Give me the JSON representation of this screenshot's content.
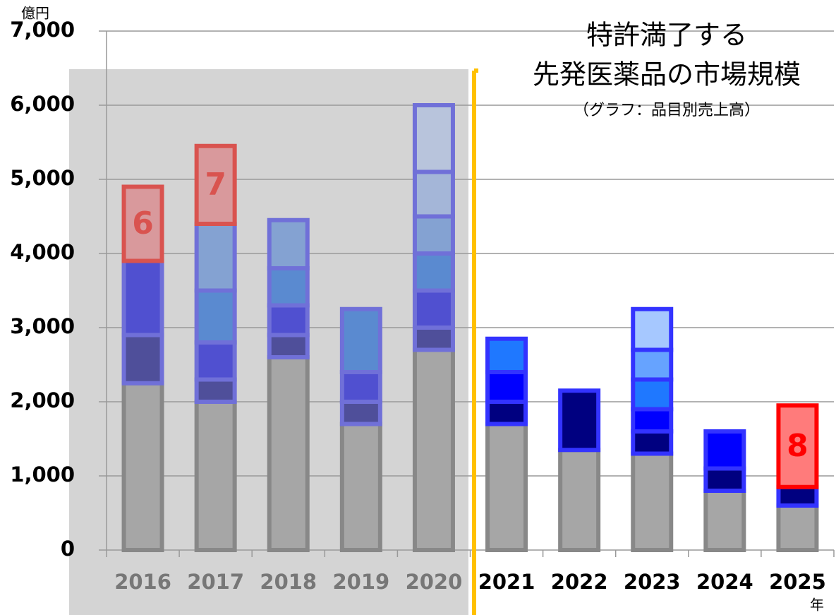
{
  "chart_data": {
    "type": "stacked_bar",
    "title_lines": [
      "特許満了する",
      "先発医薬品の市場規模"
    ],
    "subtitle": "（グラフ：品目別売上高）",
    "y_unit": "億円",
    "x_unit": "年",
    "categories": [
      "2016",
      "2017",
      "2018",
      "2019",
      "2020",
      "2021",
      "2022",
      "2023",
      "2024",
      "2025"
    ],
    "category_colors": [
      "#777777",
      "#777777",
      "#777777",
      "#777777",
      "#777777",
      "#000000",
      "#000000",
      "#000000",
      "#000000",
      "#000000"
    ],
    "ylim": [
      0,
      7000
    ],
    "yticks": [
      {
        "value": 0,
        "label": "0"
      },
      {
        "value": 1000,
        "label": "1,000"
      },
      {
        "value": 2000,
        "label": "2,000"
      },
      {
        "value": 3000,
        "label": "3,000"
      },
      {
        "value": 4000,
        "label": "4,000"
      },
      {
        "value": 5000,
        "label": "5,000"
      },
      {
        "value": 6000,
        "label": "6,000"
      },
      {
        "value": 7000,
        "label": "7,000"
      }
    ],
    "grid": true,
    "stacks": [
      [
        {
          "value": 2250,
          "color": "#a6a6a6",
          "border": "#888888"
        },
        {
          "value": 650,
          "color": "#4f4f9a",
          "border": "#7070d8"
        },
        {
          "value": 1000,
          "color": "#5050d0",
          "border": "#7070d8"
        },
        {
          "value": 1000,
          "color": "#d9999c",
          "border": "#d9534f",
          "label": 6,
          "label_color": "#d9534f"
        }
      ],
      [
        {
          "value": 2000,
          "color": "#a6a6a6",
          "border": "#888888"
        },
        {
          "value": 300,
          "color": "#4f4f9a",
          "border": "#7070d8"
        },
        {
          "value": 500,
          "color": "#5050d0",
          "border": "#7070d8"
        },
        {
          "value": 700,
          "color": "#5a8ad0",
          "border": "#7070d8"
        },
        {
          "value": 900,
          "color": "#84a2d2",
          "border": "#7070d8"
        },
        {
          "value": 1050,
          "color": "#d9999c",
          "border": "#d9534f",
          "label": 7,
          "label_color": "#d9534f"
        }
      ],
      [
        {
          "value": 2600,
          "color": "#a6a6a6",
          "border": "#888888"
        },
        {
          "value": 300,
          "color": "#4f4f9a",
          "border": "#7070d8"
        },
        {
          "value": 400,
          "color": "#5050d0",
          "border": "#7070d8"
        },
        {
          "value": 500,
          "color": "#5a8ad0",
          "border": "#7070d8"
        },
        {
          "value": 650,
          "color": "#84a2d2",
          "border": "#7070d8"
        }
      ],
      [
        {
          "value": 1700,
          "color": "#a6a6a6",
          "border": "#888888"
        },
        {
          "value": 300,
          "color": "#4f4f9a",
          "border": "#7070d8"
        },
        {
          "value": 400,
          "color": "#5050d0",
          "border": "#7070d8"
        },
        {
          "value": 850,
          "color": "#5a8ad0",
          "border": "#7070d8"
        }
      ],
      [
        {
          "value": 2700,
          "color": "#a6a6a6",
          "border": "#888888"
        },
        {
          "value": 300,
          "color": "#4f4f9a",
          "border": "#7070d8"
        },
        {
          "value": 500,
          "color": "#5050d0",
          "border": "#7070d8"
        },
        {
          "value": 500,
          "color": "#5a8ad0",
          "border": "#7070d8"
        },
        {
          "value": 500,
          "color": "#84a2d2",
          "border": "#7070d8"
        },
        {
          "value": 600,
          "color": "#a4b6d8",
          "border": "#7070d8"
        },
        {
          "value": 900,
          "color": "#b8c4dc",
          "border": "#7070d8"
        }
      ],
      [
        {
          "value": 1700,
          "color": "#a6a6a6",
          "border": "#888888"
        },
        {
          "value": 300,
          "color": "#000080",
          "border": "#3333ff"
        },
        {
          "value": 400,
          "color": "#0000ff",
          "border": "#3333ff"
        },
        {
          "value": 450,
          "color": "#1f78ff",
          "border": "#3333ff"
        }
      ],
      [
        {
          "value": 1350,
          "color": "#a6a6a6",
          "border": "#888888"
        },
        {
          "value": 800,
          "color": "#000080",
          "border": "#3333ff"
        }
      ],
      [
        {
          "value": 1300,
          "color": "#a6a6a6",
          "border": "#888888"
        },
        {
          "value": 300,
          "color": "#000080",
          "border": "#3333ff"
        },
        {
          "value": 300,
          "color": "#0000ff",
          "border": "#3333ff"
        },
        {
          "value": 400,
          "color": "#1f78ff",
          "border": "#3333ff"
        },
        {
          "value": 400,
          "color": "#66a3ff",
          "border": "#3333ff"
        },
        {
          "value": 550,
          "color": "#a6c8ff",
          "border": "#3333ff"
        }
      ],
      [
        {
          "value": 800,
          "color": "#a6a6a6",
          "border": "#888888"
        },
        {
          "value": 300,
          "color": "#000080",
          "border": "#3333ff"
        },
        {
          "value": 500,
          "color": "#0000ff",
          "border": "#3333ff"
        }
      ],
      [
        {
          "value": 600,
          "color": "#a6a6a6",
          "border": "#888888"
        },
        {
          "value": 250,
          "color": "#000080",
          "border": "#3333ff"
        },
        {
          "value": 1100,
          "color": "#ff7b7b",
          "border": "#ff0000",
          "label": 8,
          "label_color": "#ff0000"
        }
      ]
    ]
  }
}
